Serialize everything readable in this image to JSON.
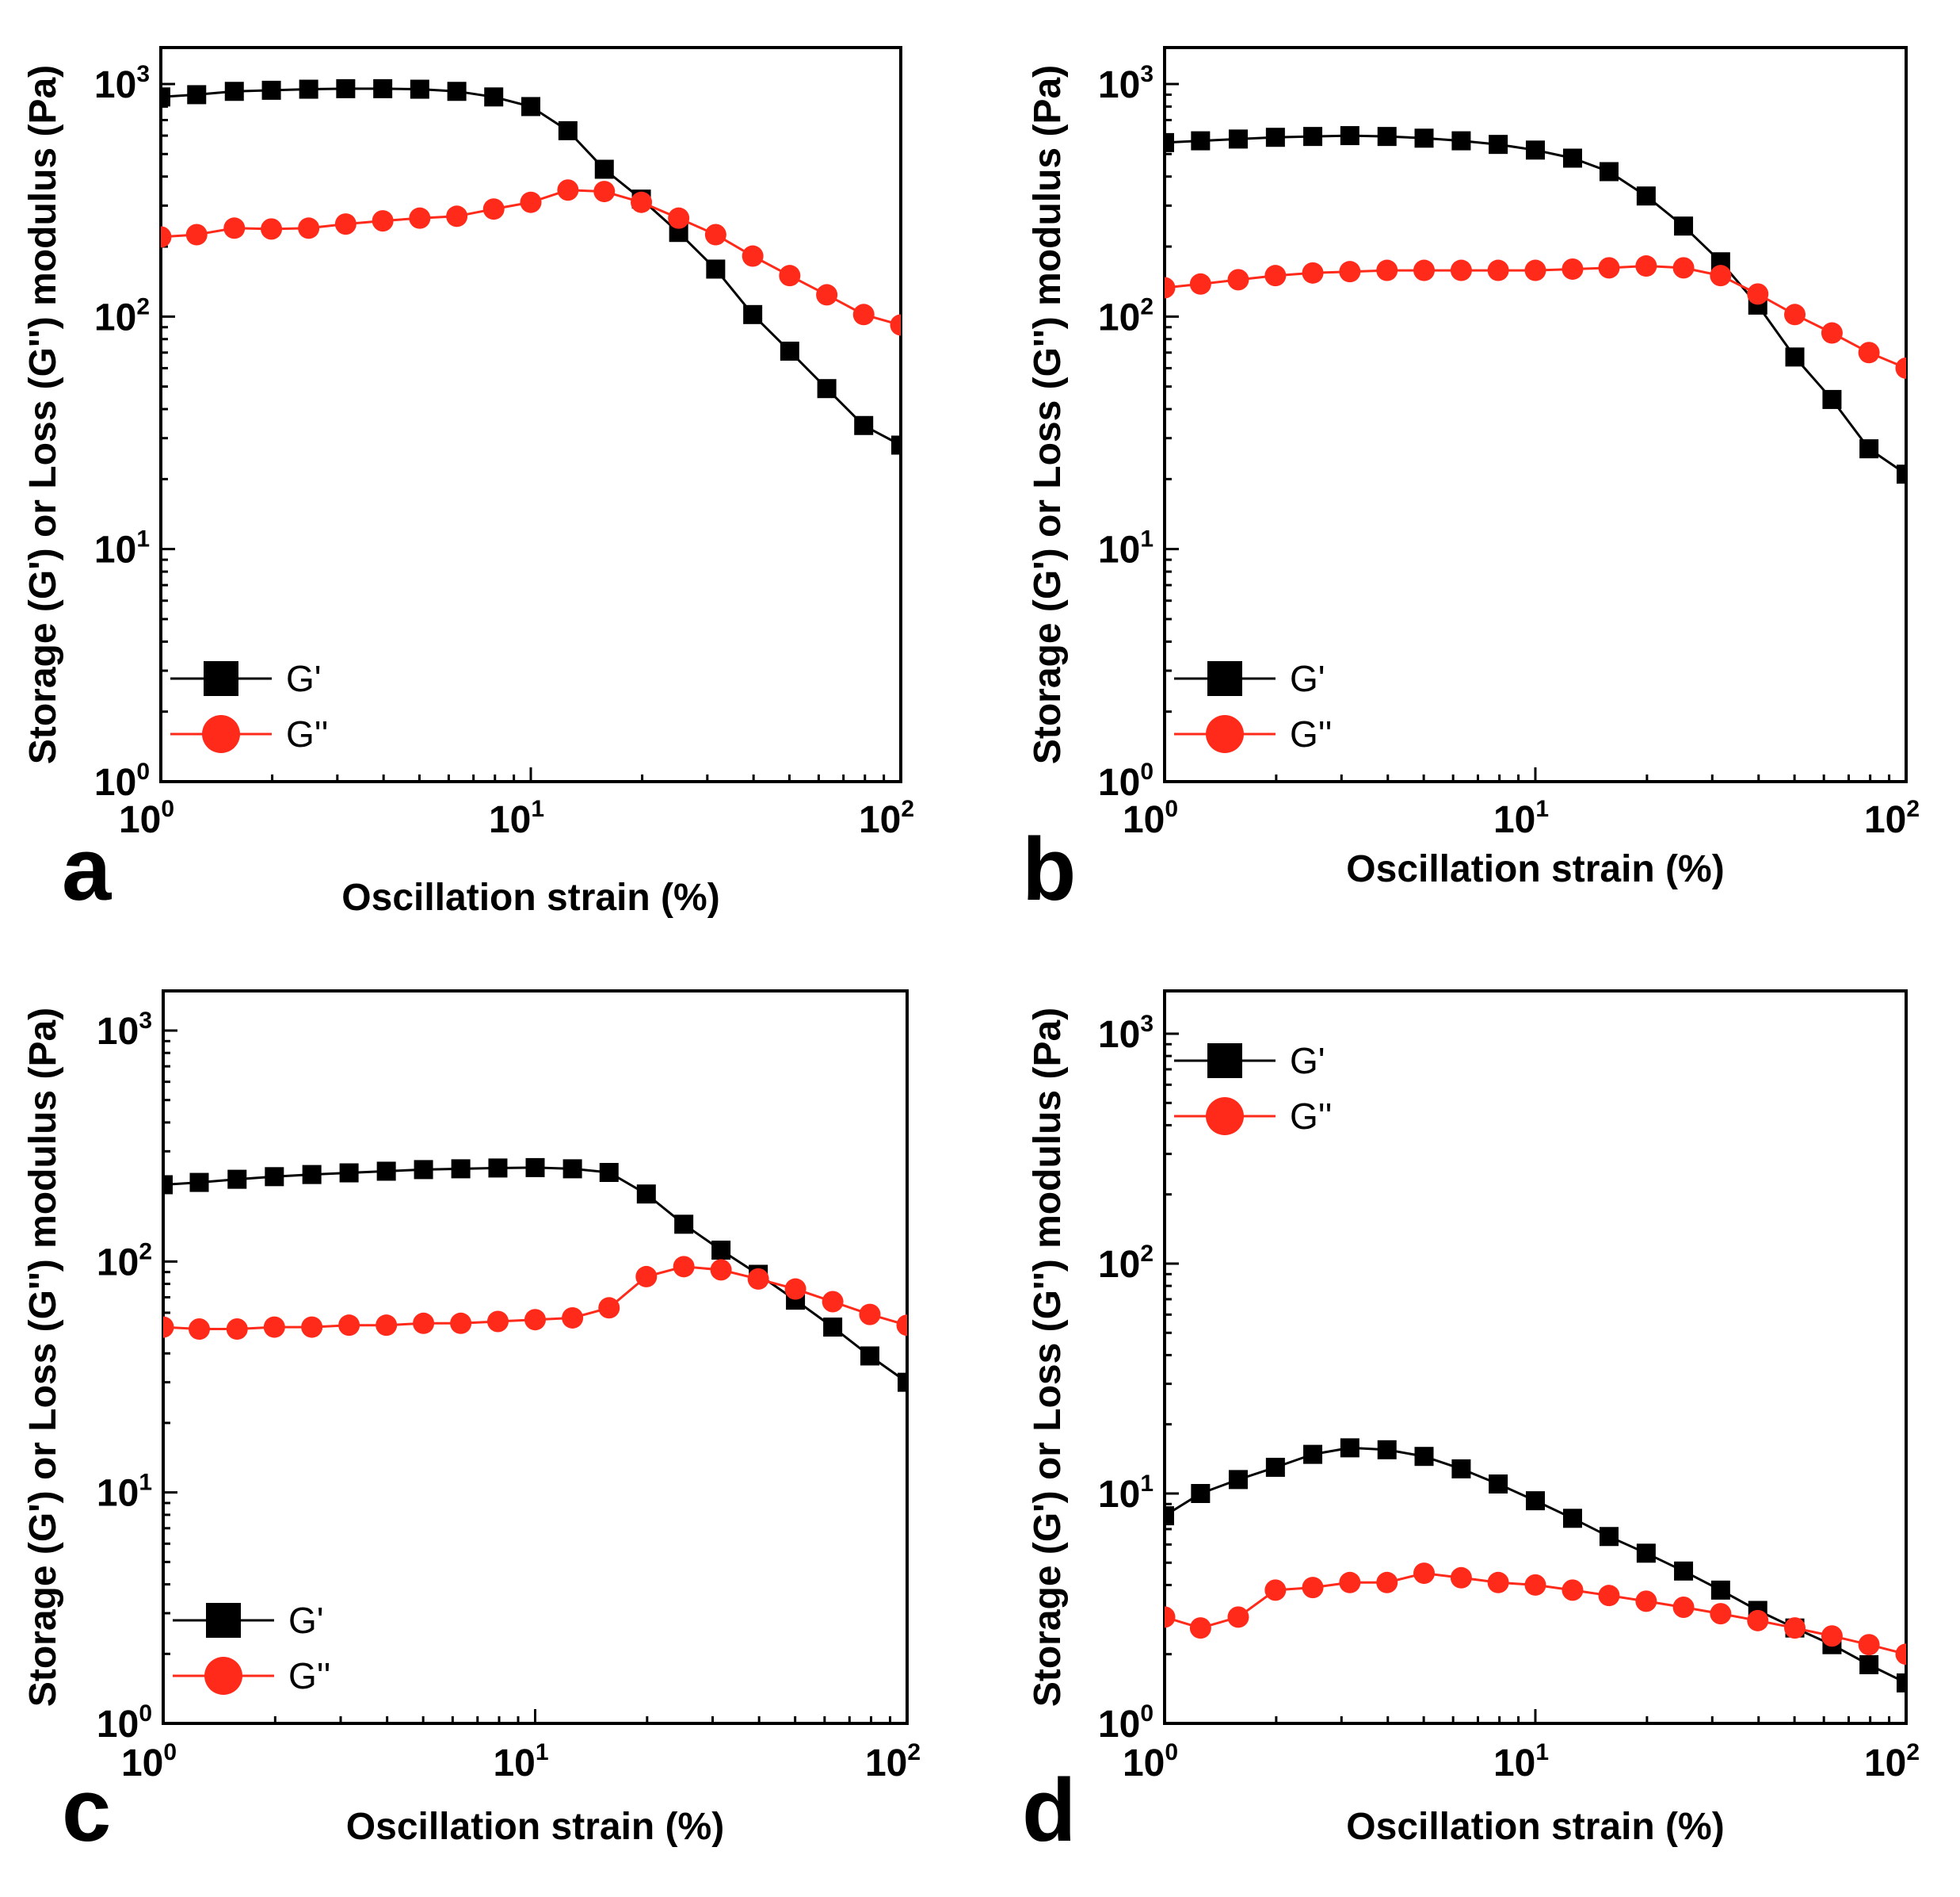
{
  "colors": {
    "g_prime": "#000000",
    "g_double_prime": "#ff2a1a",
    "axis": "#000000",
    "background": "#ffffff"
  },
  "chart_data": [
    {
      "type": "line",
      "panel": "a",
      "xscale": "log",
      "yscale": "log",
      "xlim": [
        1,
        100
      ],
      "ylim": [
        1,
        1500
      ],
      "xlabel": "Oscillation strain (%)",
      "ylabel": "Storage (G') or Loss (G'') modulus (Pa)",
      "xticks": [
        {
          "base": "10",
          "exp": "0"
        },
        {
          "base": "10",
          "exp": "1"
        },
        {
          "base": "10",
          "exp": "2"
        }
      ],
      "yticks": [
        {
          "base": "10",
          "exp": "0"
        },
        {
          "base": "10",
          "exp": "1"
        },
        {
          "base": "10",
          "exp": "2"
        },
        {
          "base": "10",
          "exp": "3"
        }
      ],
      "legend_position": "bottom-left",
      "series": [
        {
          "name": "G'",
          "marker": "square",
          "color": "#000000",
          "x": [
            1,
            1.25,
            1.58,
            1.99,
            2.51,
            3.16,
            3.98,
            5.01,
            6.31,
            7.94,
            10,
            12.6,
            15.8,
            19.9,
            25.1,
            31.6,
            39.8,
            50.1,
            63.1,
            79.4,
            100
          ],
          "y": [
            880,
            900,
            930,
            940,
            950,
            955,
            955,
            950,
            930,
            880,
            800,
            630,
            430,
            320,
            230,
            160,
            102,
            71,
            49,
            34,
            28
          ]
        },
        {
          "name": "G''",
          "marker": "circle",
          "color": "#ff2a1a",
          "x": [
            1,
            1.25,
            1.58,
            1.99,
            2.51,
            3.16,
            3.98,
            5.01,
            6.31,
            7.94,
            10,
            12.6,
            15.8,
            19.9,
            25.1,
            31.6,
            39.8,
            50.1,
            63.1,
            79.4,
            100
          ],
          "y": [
            220,
            225,
            240,
            238,
            240,
            250,
            258,
            265,
            270,
            290,
            310,
            350,
            345,
            310,
            265,
            225,
            182,
            150,
            124,
            102,
            92
          ]
        }
      ]
    },
    {
      "type": "line",
      "panel": "b",
      "xscale": "log",
      "yscale": "log",
      "xlim": [
        1,
        100
      ],
      "ylim": [
        1,
        1500
      ],
      "xlabel": "Oscillation strain (%)",
      "ylabel": "Storage (G') or Loss (G'') modulus (Pa)",
      "xticks": [
        {
          "base": "10",
          "exp": "0"
        },
        {
          "base": "10",
          "exp": "1"
        },
        {
          "base": "10",
          "exp": "2"
        }
      ],
      "yticks": [
        {
          "base": "10",
          "exp": "0"
        },
        {
          "base": "10",
          "exp": "1"
        },
        {
          "base": "10",
          "exp": "2"
        },
        {
          "base": "10",
          "exp": "3"
        }
      ],
      "legend_position": "bottom-left",
      "series": [
        {
          "name": "G'",
          "marker": "square",
          "color": "#000000",
          "x": [
            1,
            1.25,
            1.58,
            1.99,
            2.51,
            3.16,
            3.98,
            5.01,
            6.31,
            7.94,
            10,
            12.6,
            15.8,
            19.9,
            25.1,
            31.6,
            39.8,
            50.1,
            63.1,
            79.4,
            100
          ],
          "y": [
            560,
            570,
            580,
            590,
            595,
            600,
            595,
            585,
            570,
            550,
            520,
            480,
            420,
            330,
            245,
            172,
            112,
            67,
            44,
            27,
            21
          ]
        },
        {
          "name": "G''",
          "marker": "circle",
          "color": "#ff2a1a",
          "x": [
            1,
            1.25,
            1.58,
            1.99,
            2.51,
            3.16,
            3.98,
            5.01,
            6.31,
            7.94,
            10,
            12.6,
            15.8,
            19.9,
            25.1,
            31.6,
            39.8,
            50.1,
            63.1,
            79.4,
            100
          ],
          "y": [
            133,
            138,
            144,
            150,
            154,
            156,
            158,
            158,
            158,
            158,
            158,
            160,
            162,
            165,
            162,
            150,
            125,
            102,
            85,
            70,
            60
          ]
        }
      ]
    },
    {
      "type": "line",
      "panel": "c",
      "xscale": "log",
      "yscale": "log",
      "xlim": [
        1,
        100
      ],
      "ylim": [
        1,
        1500
      ],
      "xlabel": "Oscillation strain (%)",
      "ylabel": "Storage (G') or Loss (G'') modulus (Pa)",
      "xticks": [
        {
          "base": "10",
          "exp": "0"
        },
        {
          "base": "10",
          "exp": "1"
        },
        {
          "base": "10",
          "exp": "2"
        }
      ],
      "yticks": [
        {
          "base": "10",
          "exp": "0"
        },
        {
          "base": "10",
          "exp": "1"
        },
        {
          "base": "10",
          "exp": "2"
        },
        {
          "base": "10",
          "exp": "3"
        }
      ],
      "legend_position": "bottom-left",
      "series": [
        {
          "name": "G'",
          "marker": "square",
          "color": "#000000",
          "x": [
            1,
            1.25,
            1.58,
            1.99,
            2.51,
            3.16,
            3.98,
            5.01,
            6.31,
            7.94,
            10,
            12.6,
            15.8,
            19.9,
            25.1,
            31.6,
            39.8,
            50.1,
            63.1,
            79.4,
            100
          ],
          "y": [
            215,
            220,
            227,
            233,
            238,
            242,
            246,
            250,
            252,
            254,
            255,
            252,
            243,
            196,
            145,
            112,
            88,
            68,
            52,
            39,
            30
          ]
        },
        {
          "name": "G''",
          "marker": "circle",
          "color": "#ff2a1a",
          "x": [
            1,
            1.25,
            1.58,
            1.99,
            2.51,
            3.16,
            3.98,
            5.01,
            6.31,
            7.94,
            10,
            12.6,
            15.8,
            19.9,
            25.1,
            31.6,
            39.8,
            50.1,
            63.1,
            79.4,
            100
          ],
          "y": [
            52,
            51,
            51,
            52,
            52,
            53,
            53,
            54,
            54,
            55,
            56,
            57,
            63,
            86,
            95,
            92,
            84,
            76,
            67,
            59,
            53
          ]
        }
      ]
    },
    {
      "type": "line",
      "panel": "d",
      "xscale": "log",
      "yscale": "log",
      "xlim": [
        1,
        100
      ],
      "ylim": [
        1,
        1500
      ],
      "xlabel": "Oscillation strain (%)",
      "ylabel": "Storage (G') or Loss (G'') modulus (Pa)",
      "xticks": [
        {
          "base": "10",
          "exp": "0"
        },
        {
          "base": "10",
          "exp": "1"
        },
        {
          "base": "10",
          "exp": "2"
        }
      ],
      "yticks": [
        {
          "base": "10",
          "exp": "0"
        },
        {
          "base": "10",
          "exp": "1"
        },
        {
          "base": "10",
          "exp": "2"
        },
        {
          "base": "10",
          "exp": "3"
        }
      ],
      "legend_position": "top-left",
      "series": [
        {
          "name": "G'",
          "marker": "square",
          "color": "#000000",
          "x": [
            1,
            1.25,
            1.58,
            1.99,
            2.51,
            3.16,
            3.98,
            5.01,
            6.31,
            7.94,
            10,
            12.6,
            15.8,
            19.9,
            25.1,
            31.6,
            39.8,
            50.1,
            63.1,
            79.4,
            100
          ],
          "y": [
            8,
            10,
            11.5,
            13,
            14.8,
            15.8,
            15.5,
            14.5,
            12.8,
            11,
            9.3,
            7.8,
            6.5,
            5.5,
            4.6,
            3.8,
            3.1,
            2.6,
            2.2,
            1.8,
            1.5
          ]
        },
        {
          "name": "G''",
          "marker": "circle",
          "color": "#ff2a1a",
          "x": [
            1,
            1.25,
            1.58,
            1.99,
            2.51,
            3.16,
            3.98,
            5.01,
            6.31,
            7.94,
            10,
            12.6,
            15.8,
            19.9,
            25.1,
            31.6,
            39.8,
            50.1,
            63.1,
            79.4,
            100
          ],
          "y": [
            2.9,
            2.6,
            2.9,
            3.8,
            3.9,
            4.1,
            4.1,
            4.5,
            4.3,
            4.1,
            4.0,
            3.8,
            3.6,
            3.4,
            3.2,
            3.0,
            2.8,
            2.6,
            2.4,
            2.2,
            2.0
          ]
        }
      ]
    }
  ]
}
